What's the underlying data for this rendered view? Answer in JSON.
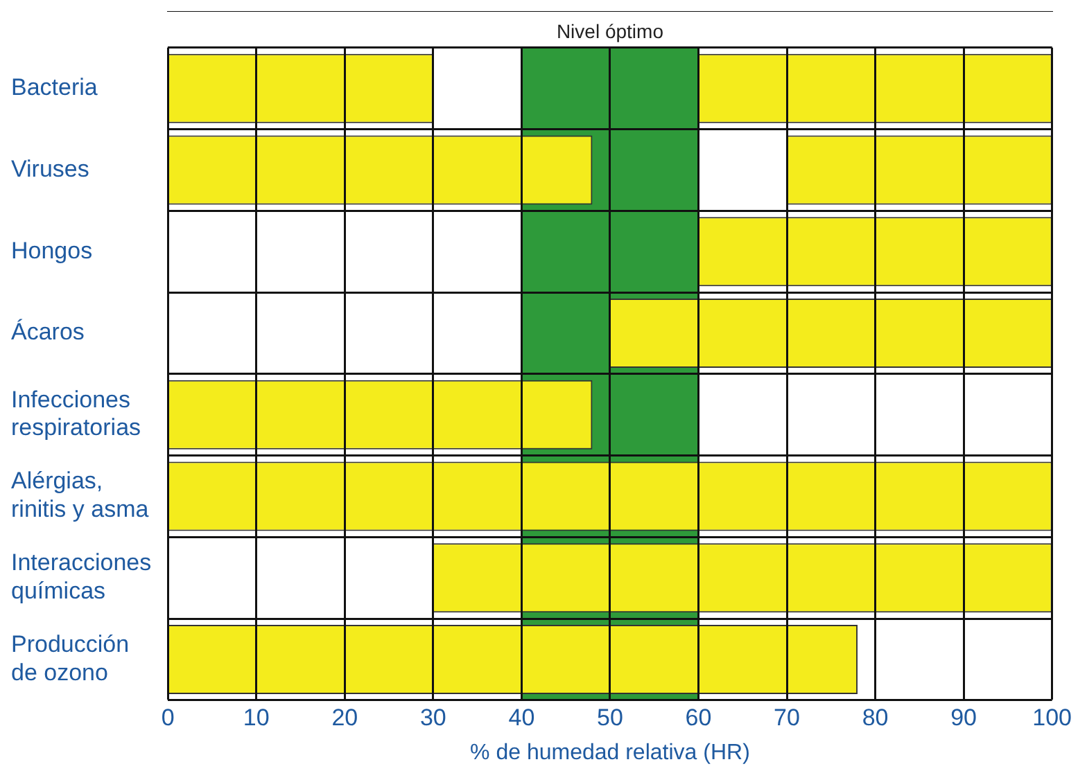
{
  "chart_data": {
    "type": "bar",
    "orientation": "horizontal",
    "xlabel": "% de humedad relativa (HR)",
    "categories": [
      "Bacteria",
      "Viruses",
      "Hongos",
      "Ácaros",
      "Infecciones\nrespiratorias",
      "Alérgias,\nrinitis y asma",
      "Interacciones\nquímicas",
      "Producción\nde ozono"
    ],
    "series": [
      {
        "color": "#f4ec1c",
        "base": [
          0,
          0,
          null,
          null,
          0,
          0,
          null,
          0
        ],
        "values": [
          30,
          48,
          null,
          null,
          48,
          50,
          null,
          78
        ]
      },
      {
        "color": "#f4ec1c",
        "base": [
          60,
          70,
          60,
          50,
          null,
          50,
          30,
          null
        ],
        "values": [
          40,
          30,
          40,
          50,
          null,
          50,
          70,
          null
        ]
      }
    ],
    "xlim": [
      0,
      100
    ],
    "xticks": [
      0,
      10,
      20,
      30,
      40,
      50,
      60,
      70,
      80,
      90,
      100
    ],
    "bands": [
      {
        "axis": "x",
        "from": 40,
        "to": 60,
        "label": "Nivel óptimo",
        "color": "#2e9a3a"
      }
    ],
    "grid": true
  }
}
